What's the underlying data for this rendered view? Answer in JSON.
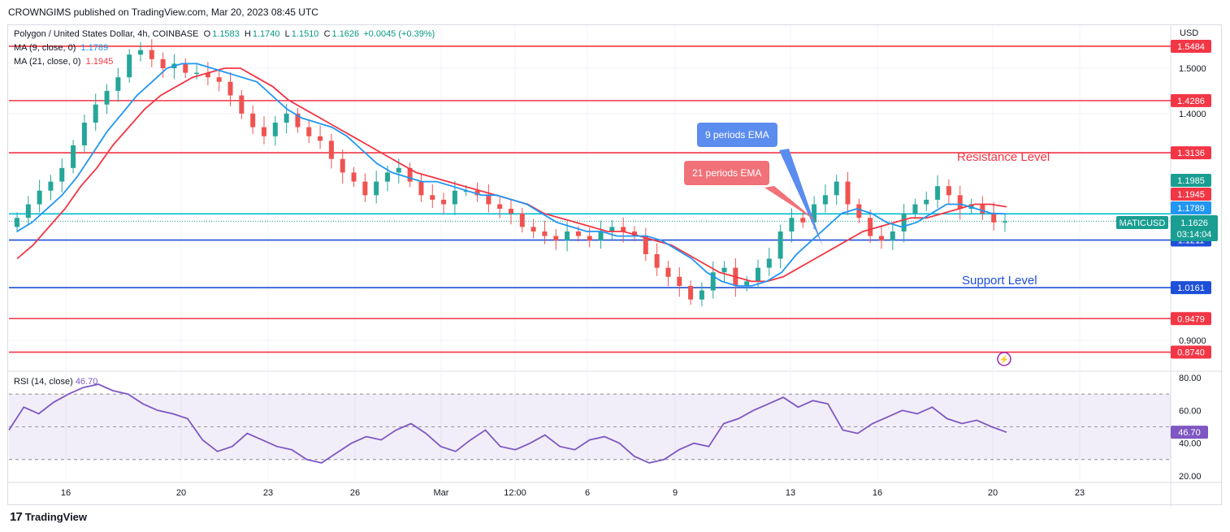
{
  "publisher": "CROWNGIMS published on TradingView.com, Mar 20, 2023 08:45 UTC",
  "footer": {
    "brand": "TradingView",
    "logo_glyph": "17"
  },
  "header": {
    "symbol": "Polygon / United States Dollar, 4h, COINBASE",
    "o_label": "O",
    "o": "1.1583",
    "h_label": "H",
    "h": "1.1740",
    "l_label": "L",
    "l": "1.1510",
    "c_label": "C",
    "c": "1.1626",
    "change": "+0.0045 (+0.39%)",
    "ma9_label": "MA (9, close, 0)",
    "ma9_value": "1.1789",
    "ma21_label": "MA (21, close, 0)",
    "ma21_value": "1.1945",
    "rsi_label": "RSI (14, close)",
    "rsi_value": "46.70"
  },
  "annotations": {
    "ema9": "9 periods EMA",
    "ema21": "21 periods EMA",
    "resistance": "Resistance Level",
    "support": "Support Level"
  },
  "colors": {
    "up": "#26a69a",
    "down": "#ef5350",
    "ma9": "#2196f3",
    "ma21": "#f23645",
    "rsi": "#7e57c2",
    "red_level": "#f23645",
    "blue_level": "#1e4fd8",
    "cyan_level": "#00bcd4",
    "ema9_box": "#5b8def",
    "ema21_box": "#f07178"
  },
  "chart_data": [
    {
      "type": "candlestick",
      "title": "Polygon / United States Dollar, 4h, COINBASE",
      "currency_label": "USD",
      "y_ticks": [
        "1.5000",
        "1.4000",
        "0.9000"
      ],
      "ylim": [
        0.84,
        1.57
      ],
      "x_tick_labels": [
        "16",
        "20",
        "23",
        "26",
        "Mar",
        "12:00",
        "6",
        "9",
        "13",
        "16",
        "20",
        "23"
      ],
      "horizontal_levels": [
        {
          "value": 1.5484,
          "label": "1.5484",
          "color": "red"
        },
        {
          "value": 1.4286,
          "label": "1.4286",
          "color": "red"
        },
        {
          "value": 1.3136,
          "label": "1.3136",
          "color": "red"
        },
        {
          "value": 1.1211,
          "label": "1.1211",
          "color": "blue"
        },
        {
          "value": 1.0161,
          "label": "1.0161",
          "color": "blue"
        },
        {
          "value": 0.9479,
          "label": "0.9479",
          "color": "red"
        },
        {
          "value": 0.874,
          "label": "0.8740",
          "color": "red"
        },
        {
          "value": 1.1789,
          "label": "1.1789",
          "color": "cyan"
        }
      ],
      "price_tags": [
        {
          "label": "1.1985",
          "value": 1.1985,
          "color": "teal"
        },
        {
          "label": "1.1945",
          "value": 1.1945,
          "color": "red"
        },
        {
          "label": "1.1789",
          "value": 1.1789,
          "color": "blue"
        }
      ],
      "last_price": {
        "symbol": "MATICUSD",
        "price": "1.1626",
        "countdown": "03:14:04"
      },
      "close_series": [
        1.17,
        1.2,
        1.23,
        1.25,
        1.28,
        1.33,
        1.38,
        1.42,
        1.45,
        1.48,
        1.53,
        1.54,
        1.52,
        1.5,
        1.51,
        1.49,
        1.49,
        1.48,
        1.47,
        1.44,
        1.4,
        1.37,
        1.35,
        1.38,
        1.4,
        1.37,
        1.35,
        1.34,
        1.3,
        1.27,
        1.25,
        1.22,
        1.25,
        1.27,
        1.28,
        1.25,
        1.22,
        1.21,
        1.2,
        1.23,
        1.23,
        1.22,
        1.2,
        1.19,
        1.18,
        1.15,
        1.14,
        1.13,
        1.12,
        1.14,
        1.13,
        1.12,
        1.14,
        1.15,
        1.14,
        1.13,
        1.09,
        1.06,
        1.04,
        1.02,
        0.99,
        1.01,
        1.05,
        1.06,
        1.02,
        1.03,
        1.06,
        1.08,
        1.14,
        1.17,
        1.16,
        1.2,
        1.22,
        1.25,
        1.2,
        1.17,
        1.13,
        1.12,
        1.14,
        1.18,
        1.2,
        1.21,
        1.24,
        1.22,
        1.19,
        1.2,
        1.18,
        1.16,
        1.1626
      ],
      "ma9_series": [
        1.14,
        1.16,
        1.19,
        1.22,
        1.26,
        1.31,
        1.36,
        1.4,
        1.44,
        1.47,
        1.5,
        1.51,
        1.51,
        1.5,
        1.49,
        1.48,
        1.47,
        1.44,
        1.41,
        1.39,
        1.38,
        1.37,
        1.35,
        1.32,
        1.29,
        1.27,
        1.26,
        1.25,
        1.25,
        1.24,
        1.23,
        1.22,
        1.22,
        1.21,
        1.2,
        1.18,
        1.16,
        1.15,
        1.14,
        1.14,
        1.13,
        1.13,
        1.13,
        1.12,
        1.1,
        1.08,
        1.05,
        1.03,
        1.02,
        1.02,
        1.03,
        1.05,
        1.09,
        1.12,
        1.15,
        1.18,
        1.19,
        1.18,
        1.16,
        1.15,
        1.16,
        1.18,
        1.2,
        1.2,
        1.19,
        1.18,
        1.1789
      ],
      "ma21_series": [
        1.08,
        1.11,
        1.15,
        1.19,
        1.24,
        1.28,
        1.33,
        1.37,
        1.41,
        1.44,
        1.46,
        1.48,
        1.49,
        1.5,
        1.5,
        1.48,
        1.46,
        1.43,
        1.41,
        1.39,
        1.37,
        1.35,
        1.33,
        1.31,
        1.29,
        1.27,
        1.26,
        1.25,
        1.24,
        1.23,
        1.22,
        1.21,
        1.2,
        1.18,
        1.17,
        1.16,
        1.15,
        1.14,
        1.14,
        1.13,
        1.12,
        1.11,
        1.09,
        1.07,
        1.05,
        1.04,
        1.03,
        1.03,
        1.04,
        1.06,
        1.08,
        1.1,
        1.12,
        1.14,
        1.15,
        1.16,
        1.17,
        1.17,
        1.18,
        1.19,
        1.2,
        1.2,
        1.1945
      ]
    },
    {
      "type": "line",
      "title": "RSI (14, close)",
      "y_ticks": [
        "80.00",
        "60.00",
        "40.00",
        "20.00"
      ],
      "ylim": [
        16,
        84
      ],
      "band": [
        30,
        70
      ],
      "mid": 50,
      "current_value": "46.70",
      "values": [
        48,
        62,
        58,
        65,
        70,
        74,
        76,
        72,
        70,
        64,
        60,
        58,
        55,
        42,
        35,
        38,
        46,
        42,
        38,
        36,
        30,
        28,
        34,
        40,
        44,
        42,
        48,
        52,
        46,
        38,
        35,
        42,
        48,
        38,
        36,
        40,
        45,
        38,
        36,
        42,
        44,
        40,
        32,
        28,
        30,
        36,
        40,
        38,
        52,
        55,
        60,
        64,
        68,
        62,
        66,
        64,
        48,
        46,
        52,
        56,
        60,
        58,
        62,
        55,
        52,
        54,
        50,
        46.7
      ]
    }
  ]
}
